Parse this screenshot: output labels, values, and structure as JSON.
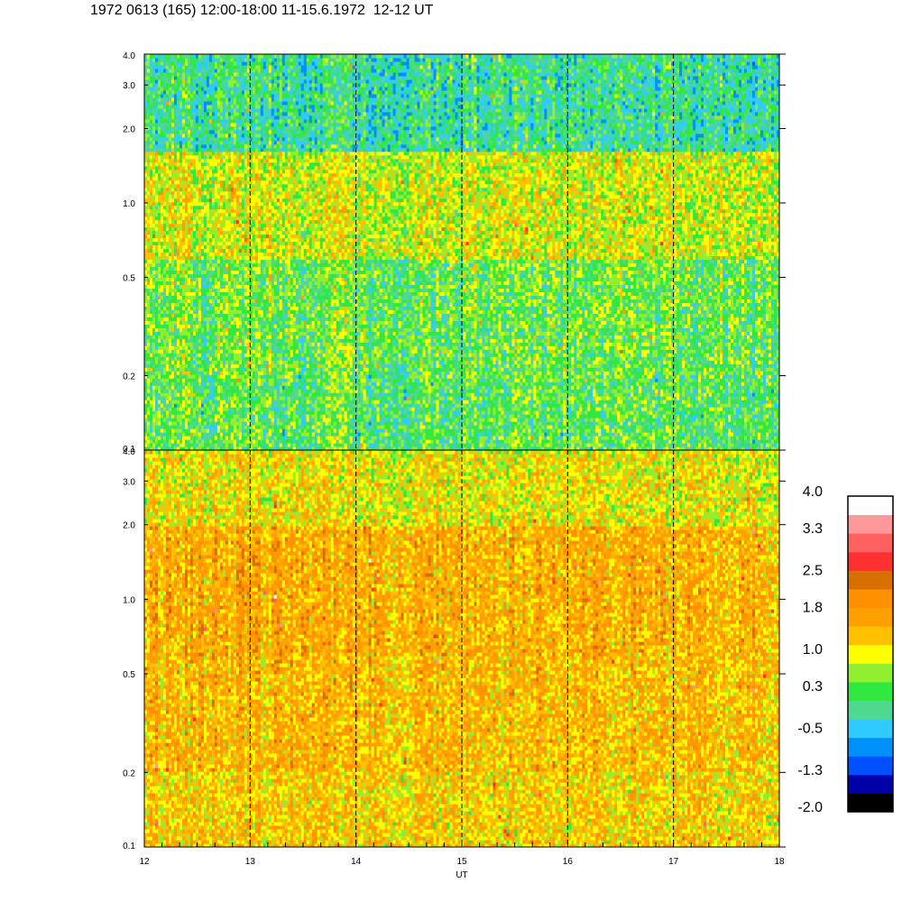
{
  "title": "1972 0613 (165) 12:00-18:00 11-15.6.1972  12-12 UT",
  "chart_data": [
    {
      "type": "heatmap",
      "panel": "upper",
      "x_range": [
        12,
        18
      ],
      "y_range": [
        0.1,
        4.0
      ],
      "y_scale": "log",
      "y_ticks": [
        "0.1",
        "0.2",
        "0.5",
        "1.0",
        "2.0",
        "3.0",
        "4.0"
      ],
      "x_ticks": [
        "12",
        "13",
        "14",
        "15",
        "16",
        "17",
        "18"
      ],
      "xlabel": "UT",
      "vertical_dashed_lines": [
        13,
        14,
        15,
        16,
        17
      ],
      "dominant_level_by_band": [
        {
          "y_range": [
            0.1,
            0.2
          ],
          "level": 0.3
        },
        {
          "y_range": [
            0.2,
            0.6
          ],
          "level": 0.4
        },
        {
          "y_range": [
            0.6,
            1.6
          ],
          "level": 0.9
        },
        {
          "y_range": [
            1.6,
            4.0
          ],
          "level": 0.0
        }
      ]
    },
    {
      "type": "heatmap",
      "panel": "lower",
      "x_range": [
        12,
        18
      ],
      "y_range": [
        0.1,
        4.0
      ],
      "y_scale": "log",
      "y_ticks": [
        "0.1",
        "0.2",
        "0.5",
        "1.0",
        "2.0",
        "3.0",
        "4.0"
      ],
      "x_ticks": [
        "12",
        "13",
        "14",
        "15",
        "16",
        "17",
        "18"
      ],
      "xlabel": "UT",
      "vertical_dashed_lines": [
        13,
        14,
        15,
        16,
        17
      ],
      "dominant_level_by_band": [
        {
          "y_range": [
            0.1,
            0.2
          ],
          "level": 1.3
        },
        {
          "y_range": [
            0.2,
            0.6
          ],
          "level": 1.5
        },
        {
          "y_range": [
            0.6,
            2.0
          ],
          "level": 1.6
        },
        {
          "y_range": [
            2.0,
            4.0
          ],
          "level": 1.1
        }
      ]
    }
  ],
  "colorbar": {
    "range": [
      -2.0,
      4.0
    ],
    "labels": [
      "4.0",
      "3.3",
      "2.5",
      "1.8",
      "1.0",
      "0.3",
      "-0.5",
      "-1.3",
      "-2.0"
    ],
    "colors": [
      "#000000",
      "#0000a8",
      "#0050ff",
      "#0090ff",
      "#30ccff",
      "#50d890",
      "#30e840",
      "#90f030",
      "#ffff00",
      "#ffc000",
      "#ffa000",
      "#ff9000",
      "#d87000",
      "#ff3030",
      "#ff6060",
      "#ff9898",
      "#ffffff"
    ]
  }
}
